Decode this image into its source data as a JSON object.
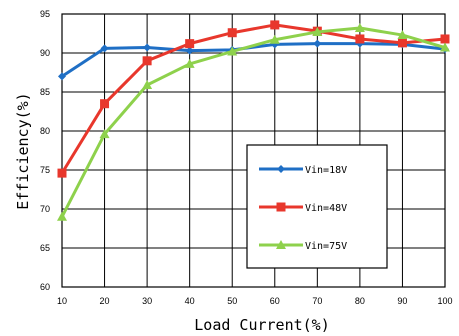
{
  "chart_data": {
    "type": "line",
    "title": "",
    "xlabel": "Load Current(%)",
    "ylabel": "Efficiency(%)",
    "x": [
      10,
      20,
      30,
      40,
      50,
      60,
      70,
      80,
      90,
      100
    ],
    "xlim": [
      10,
      100
    ],
    "ylim": [
      60,
      95
    ],
    "x_ticks": [
      "10",
      "20",
      "30",
      "40",
      "50",
      "60",
      "70",
      "80",
      "90",
      "100"
    ],
    "y_ticks": [
      "60",
      "65",
      "70",
      "75",
      "80",
      "85",
      "90",
      "95"
    ],
    "grid": true,
    "legend_position": "center-right",
    "series": [
      {
        "name": "Vin=18V",
        "color": "#1f6fc5",
        "marker": "diamond",
        "values": [
          87.0,
          90.6,
          90.7,
          90.3,
          90.4,
          91.1,
          91.2,
          91.2,
          91.1,
          90.5
        ]
      },
      {
        "name": "Vin=48V",
        "color": "#e8372c",
        "marker": "square",
        "values": [
          74.6,
          83.5,
          89.0,
          91.2,
          92.6,
          93.6,
          92.8,
          91.8,
          91.3,
          91.8
        ]
      },
      {
        "name": "Vin=75V",
        "color": "#8ed14c",
        "marker": "triangle",
        "values": [
          69.0,
          79.6,
          85.9,
          88.6,
          90.2,
          91.7,
          92.7,
          93.2,
          92.3,
          90.7
        ]
      }
    ]
  }
}
